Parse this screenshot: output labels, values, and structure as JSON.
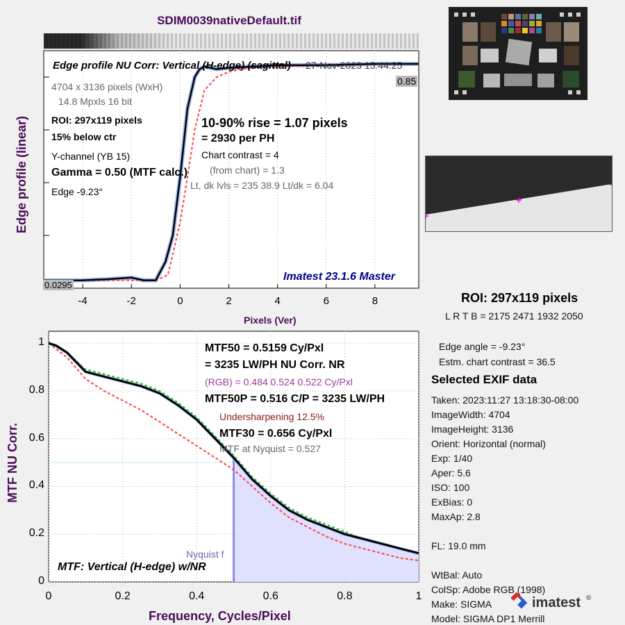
{
  "title": "SDIM0039nativeDefault.tif",
  "colors": {
    "title": "#4a0a5a",
    "black_curve": "#000000",
    "red_dashed": "#ff4f4f",
    "green_dashed": "#22bb22",
    "blue_band": "#8aa8e8",
    "nyquist_fill": "#dadaff",
    "nyquist_line": "#8c8cf0"
  },
  "edge_panel": {
    "header": "Edge profile  NU Corr: Vertical (H-edge) (sagittal)",
    "date": "27-Nov-2023 15:44:25",
    "size_line": "4704 x 3136 pixels (WxH)",
    "mpxls_line": "14.8 Mpxls   16 bit",
    "roi_line": "ROI:  297x119 pixels",
    "below_line": "15% below ctr",
    "channel_line": "Y-channel  (YB 15)",
    "gamma_line": "Gamma = 0.50 (MTF calc.)",
    "edge_line": "Edge  -9.23°",
    "rise_line": "10-90% rise = 1.07 pixels",
    "per_ph_line": "=   2930 per PH",
    "contrast_line": "Chart contrast = 4",
    "from_chart_line": "(from chart) =   1.3",
    "levels_line": "Lt, dk lvls = 235  38.9  Lt/dk = 6.04",
    "watermark": "Imatest 23.1.6 Master",
    "top_value": "0.85",
    "bottom_value": "0.0295",
    "ylabel": "Edge profile (linear)",
    "xlabel": "Pixels (Ver)",
    "xticks": [
      "-4",
      "-2",
      "0",
      "2",
      "4",
      "6",
      "8"
    ]
  },
  "mtf_panel": {
    "mtf50_line": "MTF50 = 0.5159 Cy/Pxl",
    "lwph_line": "= 3235 LW/PH  NU Corr.  NR",
    "rgb_line": "(RGB) = 0.484  0.524  0.522 Cy/Pxl",
    "mtf50p_line": "MTF50P = 0.516 C/P = 3235 LW/PH",
    "undersharp_line": "Undersharpening 12.5%",
    "mtf30_line": "MTF30 = 0.656 Cy/Pxl",
    "nyq_line": "MTF at Nyquist = 0.527",
    "nyquist_label": "Nyquist f",
    "footer": "MTF: Vertical (H-edge) w/NR",
    "ylabel": "MTF  NU Corr.",
    "xlabel": "Frequency, Cycles/Pixel",
    "xticks": [
      "0",
      "0.2",
      "0.4",
      "0.6",
      "0.8",
      "1"
    ],
    "yticks": [
      "0",
      "0.2",
      "0.4",
      "0.6",
      "0.8",
      "1"
    ]
  },
  "side": {
    "roi_title": "ROI:  297x119 pixels",
    "lrtb": "L R  T B = 2175 2471  1932 2050",
    "edge_angle": "Edge angle = -9.23°",
    "estm_contrast": "Estm. chart contrast = 36.5",
    "exif_title": "Selected EXIF data",
    "exif": [
      "Taken: 2023:11:27 13:18:30-08:00",
      "ImageWidth:  4704",
      "ImageHeight:  3136",
      "Orient: Horizontal (normal)",
      "Exp:     1/40",
      "Aper:    5.6",
      "ISO:     100",
      "ExBias:  0",
      "MaxAp:  2.8",
      "",
      "FL:      19.0 mm",
      "",
      "WtBal:  Auto",
      "ColSp:  Adobe RGB (1998)",
      "Make:  SIGMA",
      "Model:  SIGMA DP1 Merrill"
    ],
    "logo_text": "imatest"
  },
  "chart_data": [
    {
      "type": "line",
      "title": "Edge profile  NU Corr: Vertical (H-edge) (sagittal)",
      "xlabel": "Pixels (Ver)",
      "ylabel": "Edge profile (linear)",
      "xlim": [
        -5.6,
        9.8
      ],
      "ylim": [
        0.0,
        0.9
      ],
      "grid": true,
      "series": [
        {
          "x": [
            -5.6,
            -4,
            -3,
            -2,
            -1.5,
            -1,
            -0.6,
            -0.3,
            0,
            0.3,
            0.6,
            0.8,
            1,
            1.5,
            2,
            3,
            4,
            6,
            8,
            9.8
          ],
          "values": [
            0.0295,
            0.03,
            0.034,
            0.04,
            0.03,
            0.03,
            0.1,
            0.2,
            0.42,
            0.68,
            0.8,
            0.83,
            0.84,
            0.83,
            0.835,
            0.84,
            0.845,
            0.845,
            0.85,
            0.85
          ]
        },
        {
          "x": [
            -5.6,
            -1,
            -0.5,
            0,
            0.3,
            0.6,
            1,
            1.5,
            2,
            2.5,
            3,
            4,
            6,
            9.8
          ],
          "values": [
            0.0295,
            0.03,
            0.05,
            0.25,
            0.42,
            0.6,
            0.75,
            0.8,
            0.82,
            0.83,
            0.835,
            0.84,
            0.845,
            0.85
          ]
        }
      ]
    },
    {
      "type": "line",
      "xlabel": "Frequency, Cycles/Pixel",
      "ylabel": "MTF  NU Corr.",
      "xlim": [
        0,
        1
      ],
      "ylim": [
        0,
        1.05
      ],
      "grid": true,
      "series": [
        {
          "x": [
            0,
            0.02,
            0.05,
            0.1,
            0.15,
            0.2,
            0.25,
            0.3,
            0.35,
            0.4,
            0.45,
            0.5,
            0.55,
            0.6,
            0.65,
            0.7,
            0.75,
            0.8,
            0.85,
            0.9,
            0.95,
            1
          ],
          "values": [
            1,
            0.99,
            0.96,
            0.88,
            0.86,
            0.84,
            0.82,
            0.79,
            0.74,
            0.68,
            0.6,
            0.52,
            0.43,
            0.36,
            0.3,
            0.26,
            0.23,
            0.2,
            0.18,
            0.16,
            0.14,
            0.12
          ]
        },
        {
          "x": [
            0,
            0.05,
            0.1,
            0.15,
            0.2,
            0.25,
            0.3,
            0.35,
            0.4,
            0.45,
            0.5,
            0.55,
            0.6,
            0.65,
            0.7,
            0.75,
            0.8,
            0.85,
            0.9,
            0.95,
            1
          ],
          "values": [
            1,
            0.94,
            0.85,
            0.8,
            0.76,
            0.72,
            0.67,
            0.62,
            0.57,
            0.52,
            0.47,
            0.4,
            0.33,
            0.27,
            0.23,
            0.19,
            0.16,
            0.14,
            0.12,
            0.1,
            0.09
          ]
        },
        {
          "x": [
            0,
            0.05,
            0.1,
            0.15,
            0.2,
            0.25,
            0.3,
            0.35,
            0.4,
            0.45,
            0.5,
            0.55,
            0.6,
            0.65,
            0.7,
            0.75,
            0.8,
            0.85,
            0.9,
            0.95,
            1
          ],
          "values": [
            1,
            0.96,
            0.89,
            0.87,
            0.85,
            0.83,
            0.8,
            0.75,
            0.69,
            0.61,
            0.53,
            0.44,
            0.37,
            0.31,
            0.27,
            0.24,
            0.21,
            0.18,
            0.16,
            0.14,
            0.12
          ]
        }
      ]
    }
  ]
}
